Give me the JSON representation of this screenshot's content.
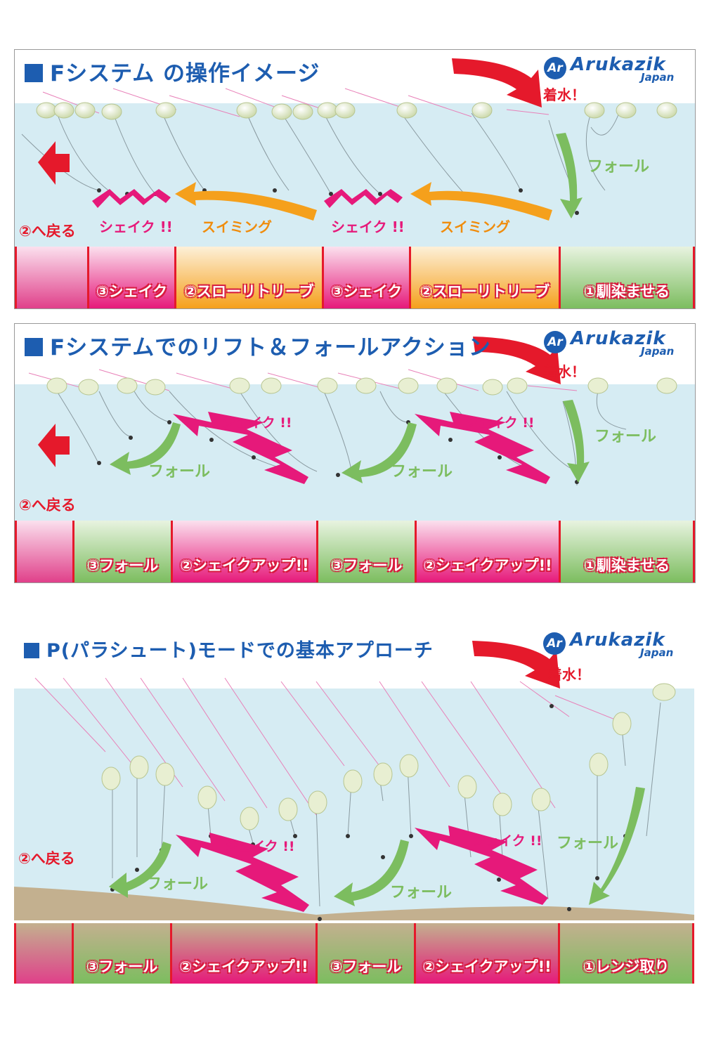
{
  "brand": {
    "mark": "Ar",
    "name": "Arukazik",
    "sub": "Japan"
  },
  "colors": {
    "water": "#d6ecf3",
    "pink": "#e6197a",
    "orange": "#f5a01c",
    "green": "#7cbd5f",
    "red": "#e5192b",
    "blue": "#1d5db0",
    "sand": "#c3b08f"
  },
  "panels": [
    {
      "title": "Fシステム の操作イメージ",
      "splash": "着水！",
      "back": "②へ戻る",
      "labels": {
        "fall": "フォール",
        "shake1": "シェイク !!",
        "swim1": "スイミング",
        "shake2": "シェイク !!",
        "swim2": "スイミング"
      },
      "steps": [
        {
          "label": "",
          "color": "pink-fade"
        },
        {
          "label": "③シェイク",
          "color": "pink"
        },
        {
          "label": "②スローリトリーブ",
          "color": "orange"
        },
        {
          "label": "③シェイク",
          "color": "pink"
        },
        {
          "label": "②スローリトリーブ",
          "color": "orange"
        },
        {
          "label": "①馴染ませる",
          "color": "green"
        }
      ]
    },
    {
      "title": "Fシステムでのリフト＆フォールアクション",
      "splash": "着水！",
      "back": "②へ戻る",
      "labels": {
        "fall0": "フォール",
        "shake1": "シェイク !!",
        "fall1": "フォール",
        "shake2": "シェイク !!",
        "fall2": "フォール"
      },
      "steps": [
        {
          "label": "",
          "color": "pink-fade"
        },
        {
          "label": "③フォール",
          "color": "green"
        },
        {
          "label": "②シェイクアップ!!",
          "color": "pink"
        },
        {
          "label": "③フォール",
          "color": "green"
        },
        {
          "label": "②シェイクアップ!!",
          "color": "pink"
        },
        {
          "label": "①馴染ませる",
          "color": "green"
        }
      ]
    },
    {
      "title": "P(パラシュート)モードでの基本アプローチ",
      "splash": "着水！",
      "back": "②へ戻る",
      "labels": {
        "fall0": "フォール",
        "shake1": "シェイク !!",
        "fall1": "フォール",
        "shake2": "シェイク !!",
        "fall2": "フォール"
      },
      "steps": [
        {
          "label": "",
          "color": "pink-fade"
        },
        {
          "label": "③フォール",
          "color": "green"
        },
        {
          "label": "②シェイクアップ!!",
          "color": "pink"
        },
        {
          "label": "③フォール",
          "color": "green"
        },
        {
          "label": "②シェイクアップ!!",
          "color": "pink"
        },
        {
          "label": "①レンジ取り",
          "color": "green"
        }
      ]
    }
  ]
}
